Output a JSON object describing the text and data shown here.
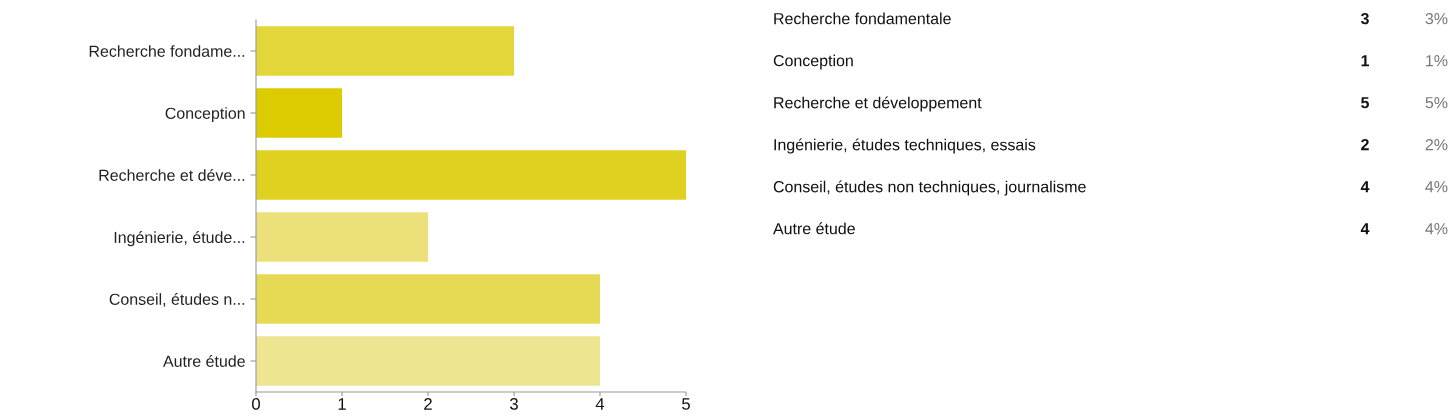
{
  "chart_data": {
    "type": "bar",
    "orientation": "horizontal",
    "categories": [
      "Recherche fondame...",
      "Conception",
      "Recherche et déve...",
      "Ingénierie, étude...",
      "Conseil, études n...",
      "Autre étude"
    ],
    "values": [
      3,
      1,
      5,
      2,
      4,
      4
    ],
    "colors": [
      "#e3d63a",
      "#dccb00",
      "#e0d020",
      "#ebe07a",
      "#e6da55",
      "#ede58f"
    ],
    "xlim": [
      0,
      5
    ],
    "xticks": [
      0,
      1,
      2,
      3,
      4,
      5
    ],
    "grid": false,
    "legend": false,
    "annotations": [
      "Recherche fondamentale",
      "Conception",
      "Recherche et développement",
      "Ingénierie, études techniques, essais",
      "Conseil, études non techniques, journalisme",
      "Autre étude",
      "3",
      "1",
      "5",
      "2",
      "4",
      "4",
      "3%",
      "1%",
      "5%",
      "2%",
      "4%",
      "4%"
    ]
  }
}
